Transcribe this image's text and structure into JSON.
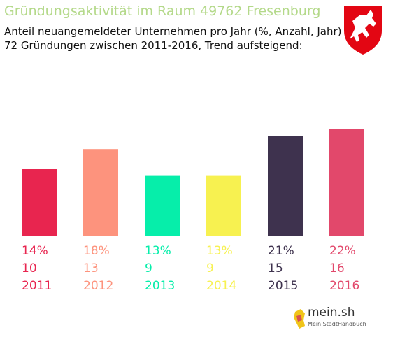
{
  "header": {
    "title": "Gründungsaktivität im Raum 49762 Fresenburg",
    "subtitle_line1": "Anteil neuangemeldeter Unternehmen pro Jahr (%, Anzahl, Jahr)",
    "subtitle_line2": "72 Gründungen zwischen 2011-2016, Trend aufsteigend:"
  },
  "crest": {
    "icon": "lower-saxony-horse-crest-icon",
    "color": "#e30613"
  },
  "logo": {
    "name": "mein.sh",
    "tagline": "Mein StadtHandbuch"
  },
  "chart_data": {
    "type": "bar",
    "categories": [
      "2011",
      "2012",
      "2013",
      "2014",
      "2015",
      "2016"
    ],
    "values": [
      10,
      13,
      9,
      9,
      15,
      16
    ],
    "percent_labels": [
      "14%",
      "18%",
      "13%",
      "13%",
      "21%",
      "22%"
    ],
    "colors": [
      "#e8254f",
      "#fd937d",
      "#06eeaa",
      "#f7f150",
      "#3e324e",
      "#e2486b"
    ],
    "ylim": [
      0,
      20
    ],
    "grid": false,
    "legend": "none"
  }
}
